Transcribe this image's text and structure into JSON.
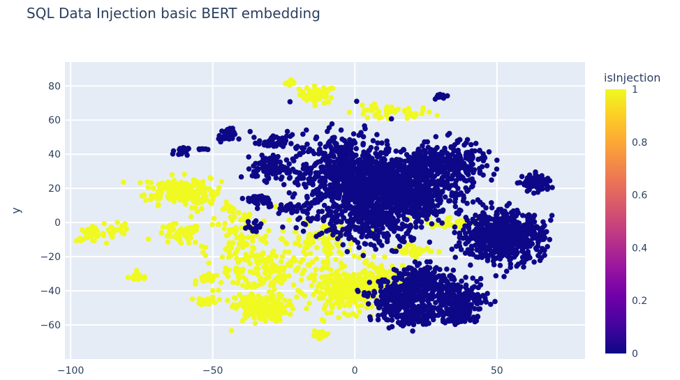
{
  "chart_data": {
    "type": "scatter",
    "title": "SQL Data Injection basic BERT embedding",
    "xlabel": "",
    "ylabel": "y",
    "xlim": [
      -102,
      81
    ],
    "ylim": [
      -80,
      94
    ],
    "xticks": [
      -100,
      -50,
      0,
      50
    ],
    "yticks": [
      -60,
      -40,
      -20,
      0,
      20,
      40,
      60,
      80
    ],
    "xtick_labels": [
      "−100",
      "−50",
      "0",
      "50"
    ],
    "ytick_labels": [
      "−60",
      "−40",
      "−20",
      "0",
      "20",
      "40",
      "60",
      "80"
    ],
    "grid": true,
    "colorbar": {
      "title": "isInjection",
      "range": [
        0,
        1
      ],
      "ticks": [
        0,
        0.2,
        0.4,
        0.6,
        0.8,
        1
      ],
      "tick_labels": [
        "0",
        "0.2",
        "0.4",
        "0.6",
        "0.8",
        "1"
      ],
      "colorscale": [
        "#0d0887",
        "#46039f",
        "#7201a8",
        "#9c179e",
        "#bd3786",
        "#d8576b",
        "#ed7953",
        "#fb9f3a",
        "#fdca26",
        "#f0f921"
      ]
    },
    "clusters": [
      {
        "isInjection": 1,
        "x": -22,
        "y": 82,
        "sx": 1.2,
        "sy": 1.2,
        "n": 10
      },
      {
        "isInjection": 1,
        "x": -13,
        "y": 75,
        "sx": 3.2,
        "sy": 2.5,
        "n": 45
      },
      {
        "isInjection": 1,
        "x": 12,
        "y": 64,
        "sx": 8,
        "sy": 2.2,
        "n": 45
      },
      {
        "isInjection": 1,
        "x": -64,
        "y": 19,
        "sx": 5,
        "sy": 4,
        "n": 130
      },
      {
        "isInjection": 1,
        "x": -54,
        "y": 17,
        "sx": 3.5,
        "sy": 4,
        "n": 60
      },
      {
        "isInjection": 1,
        "x": -44,
        "y": 8,
        "sx": 1.5,
        "sy": 1,
        "n": 15
      },
      {
        "isInjection": 1,
        "x": -93,
        "y": -7,
        "sx": 2.5,
        "sy": 2,
        "n": 30
      },
      {
        "isInjection": 1,
        "x": -84,
        "y": -4,
        "sx": 3,
        "sy": 4,
        "n": 20
      },
      {
        "isInjection": 1,
        "x": -76,
        "y": -32,
        "sx": 1.8,
        "sy": 1.2,
        "n": 20
      },
      {
        "isInjection": 1,
        "x": -62,
        "y": -7,
        "sx": 4,
        "sy": 3,
        "n": 50
      },
      {
        "isInjection": 1,
        "x": -52,
        "y": -33,
        "sx": 1.8,
        "sy": 1.2,
        "n": 25
      },
      {
        "isInjection": 1,
        "x": -52,
        "y": -46,
        "sx": 1.8,
        "sy": 1.2,
        "n": 25
      },
      {
        "isInjection": 1,
        "x": -40,
        "y": -15,
        "sx": 6,
        "sy": 12,
        "n": 140
      },
      {
        "isInjection": 1,
        "x": -28,
        "y": -28,
        "sx": 6,
        "sy": 6,
        "n": 100
      },
      {
        "isInjection": 1,
        "x": -33,
        "y": -50,
        "sx": 4.5,
        "sy": 4,
        "n": 200
      },
      {
        "isInjection": 1,
        "x": -12,
        "y": -12,
        "sx": 7,
        "sy": 6,
        "n": 100
      },
      {
        "isInjection": 1,
        "x": -2,
        "y": -40,
        "sx": 7,
        "sy": 6,
        "n": 300
      },
      {
        "isInjection": 1,
        "x": 9,
        "y": -33,
        "sx": 5,
        "sy": 5,
        "n": 80
      },
      {
        "isInjection": 1,
        "x": -12,
        "y": -66,
        "sx": 1.8,
        "sy": 1.5,
        "n": 18
      },
      {
        "isInjection": 1,
        "x": 34,
        "y": 0,
        "sx": 5,
        "sy": 1.8,
        "n": 35
      },
      {
        "isInjection": 1,
        "x": 21,
        "y": -16,
        "sx": 4,
        "sy": 2,
        "n": 30
      },
      {
        "isInjection": 0,
        "x": -61,
        "y": 42,
        "sx": 1.2,
        "sy": 1.2,
        "n": 25
      },
      {
        "isInjection": 0,
        "x": -54,
        "y": 43,
        "sx": 0.8,
        "sy": 0.8,
        "n": 8
      },
      {
        "isInjection": 0,
        "x": -45,
        "y": 51,
        "sx": 1.5,
        "sy": 2,
        "n": 35
      },
      {
        "isInjection": 0,
        "x": -29,
        "y": 47,
        "sx": 2.5,
        "sy": 1.8,
        "n": 40
      },
      {
        "isInjection": 0,
        "x": -30,
        "y": 32,
        "sx": 3,
        "sy": 3.5,
        "n": 100
      },
      {
        "isInjection": 0,
        "x": -33,
        "y": 13,
        "sx": 2.5,
        "sy": 2,
        "n": 40
      },
      {
        "isInjection": 0,
        "x": 30,
        "y": 74,
        "sx": 1.5,
        "sy": 1,
        "n": 14
      },
      {
        "isInjection": 0,
        "x": -3,
        "y": 28,
        "sx": 10,
        "sy": 12,
        "n": 700
      },
      {
        "isInjection": 0,
        "x": 15,
        "y": 18,
        "sx": 9,
        "sy": 9,
        "n": 900
      },
      {
        "isInjection": 0,
        "x": 32,
        "y": 33,
        "sx": 7,
        "sy": 7,
        "n": 300
      },
      {
        "isInjection": 0,
        "x": 8,
        "y": -3,
        "sx": 8,
        "sy": 6,
        "n": 150
      },
      {
        "isInjection": 0,
        "x": 52,
        "y": -8,
        "sx": 7,
        "sy": 7,
        "n": 700
      },
      {
        "isInjection": 0,
        "x": 64,
        "y": 23,
        "sx": 2.5,
        "sy": 2.5,
        "n": 90
      },
      {
        "isInjection": 0,
        "x": 16,
        "y": -45,
        "sx": 5,
        "sy": 6,
        "n": 300
      },
      {
        "isInjection": 0,
        "x": 25,
        "y": -35,
        "sx": 5,
        "sy": 5,
        "n": 200
      },
      {
        "isInjection": 0,
        "x": 37,
        "y": -45,
        "sx": 5,
        "sy": 5,
        "n": 180
      },
      {
        "isInjection": 0,
        "x": 37,
        "y": -55,
        "sx": 3,
        "sy": 2,
        "n": 60
      },
      {
        "isInjection": 0,
        "x": 20,
        "y": -55,
        "sx": 5,
        "sy": 3,
        "n": 80
      },
      {
        "isInjection": 0,
        "x": -10,
        "y": 5,
        "sx": 6,
        "sy": 6,
        "n": 60
      },
      {
        "isInjection": 0,
        "x": -36,
        "y": -2,
        "sx": 2,
        "sy": 2,
        "n": 15
      },
      {
        "isInjection": 0,
        "x": -24,
        "y": 8,
        "sx": 2,
        "sy": 2,
        "n": 15
      }
    ]
  }
}
